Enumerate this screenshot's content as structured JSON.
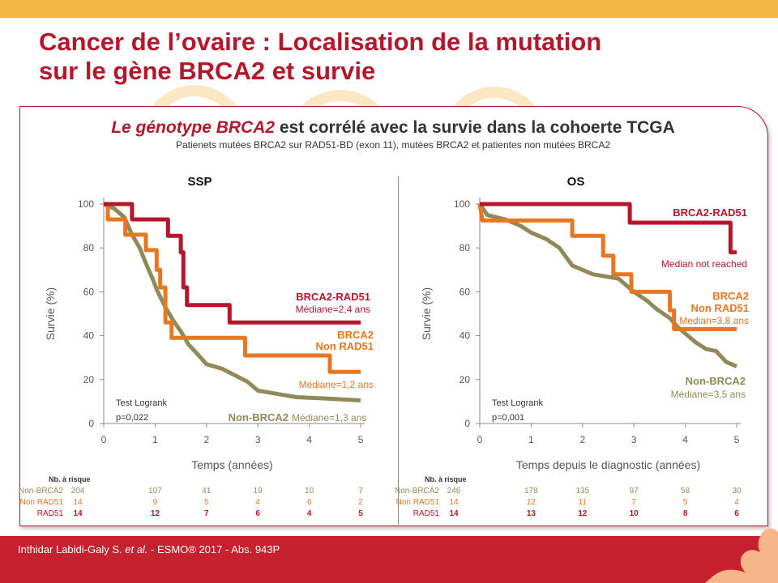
{
  "slide": {
    "title_line1": "Cancer de l’ovaire : Localisation de la mutation",
    "title_line2": "sur le gène BRCA2 et survie",
    "subtitle_italic": "Le génotype BRCA2",
    "subtitle_rest": " est corrélé avec la survie dans la cohoerte TCGA",
    "subsubtitle": "Patienets mutées BRCA2 sur RAD51-BD (exon 11), mutées BRCA2 et patientes non mutées BRCA2",
    "footer_author": "Inthidar Labidi-Galy S. ",
    "footer_etal": "et al.",
    "footer_rest": " - ESMO® 2017 - Abs. 943P"
  },
  "colors": {
    "rad51": "#b3172c",
    "non_rad51": "#e87722",
    "non_brca2": "#8f8a58",
    "title": "#b3172c",
    "footer": "#c7202f"
  },
  "chart_data": [
    {
      "type": "line",
      "title": "SSP",
      "xlabel": "Temps (années)",
      "ylabel": "Survie (%)",
      "xlim": [
        0,
        5
      ],
      "ylim": [
        0,
        100
      ],
      "xticks": [
        "0",
        "1",
        "2",
        "3",
        "4",
        "5"
      ],
      "yticks": [
        "0",
        "20",
        "40",
        "60",
        "80",
        "100"
      ],
      "test_label": "Test Logrank",
      "p_value": "p=0,022",
      "series": [
        {
          "name": "BRCA2-RAD51",
          "color": "#b3172c",
          "points": [
            [
              0,
              100
            ],
            [
              0.55,
              100
            ],
            [
              0.55,
              93
            ],
            [
              1.25,
              93
            ],
            [
              1.25,
              85.5
            ],
            [
              1.5,
              85.5
            ],
            [
              1.5,
              78
            ],
            [
              1.55,
              78
            ],
            [
              1.55,
              62
            ],
            [
              1.62,
              62
            ],
            [
              1.62,
              54
            ],
            [
              2.45,
              54
            ],
            [
              2.45,
              46
            ],
            [
              5,
              46
            ]
          ],
          "label_lines": [
            "BRCA2-RAD51",
            "Médiane=2,4 ans"
          ]
        },
        {
          "name": "Non RAD51",
          "color": "#e87722",
          "points": [
            [
              0,
              100
            ],
            [
              0.08,
              100
            ],
            [
              0.08,
              93
            ],
            [
              0.42,
              93
            ],
            [
              0.42,
              86
            ],
            [
              0.82,
              86
            ],
            [
              0.82,
              79
            ],
            [
              1.03,
              79
            ],
            [
              1.03,
              70
            ],
            [
              1.1,
              70
            ],
            [
              1.1,
              62
            ],
            [
              1.2,
              62
            ],
            [
              1.2,
              46
            ],
            [
              1.32,
              46
            ],
            [
              1.32,
              39
            ],
            [
              2.75,
              39
            ],
            [
              2.75,
              31
            ],
            [
              4.4,
              31
            ],
            [
              4.4,
              23.5
            ],
            [
              5,
              23.5
            ]
          ],
          "label_lines": [
            "BRCA2",
            "Non RAD51"
          ],
          "median_label": "Médiane=1,2 ans"
        },
        {
          "name": "Non-BRCA2",
          "color": "#8f8a58",
          "points": [
            [
              0,
              100
            ],
            [
              0.2,
              98
            ],
            [
              0.4,
              94
            ],
            [
              0.55,
              86
            ],
            [
              0.7,
              80
            ],
            [
              0.82,
              73
            ],
            [
              0.95,
              66
            ],
            [
              1.05,
              60
            ],
            [
              1.2,
              53
            ],
            [
              1.35,
              47
            ],
            [
              1.5,
              42
            ],
            [
              1.65,
              36
            ],
            [
              1.85,
              31
            ],
            [
              2.0,
              27
            ],
            [
              2.3,
              25
            ],
            [
              2.55,
              22
            ],
            [
              2.8,
              19
            ],
            [
              3.0,
              15
            ],
            [
              3.5,
              13
            ],
            [
              3.75,
              12
            ],
            [
              4.2,
              11.5
            ],
            [
              5,
              10.5
            ]
          ],
          "label_lines": [
            "Non-BRCA2",
            "Médiane=1,3 ans"
          ]
        }
      ],
      "at_risk": {
        "header": "Nb. à risque",
        "rows": [
          {
            "name": "Non-BRCA2",
            "values": [
              "204",
              "107",
              "41",
              "19",
              "10",
              "7"
            ]
          },
          {
            "name": "Non RAD51",
            "values": [
              "14",
              "9",
              "5",
              "4",
              "6",
              "2"
            ]
          },
          {
            "name": "RAD51",
            "values": [
              "14",
              "12",
              "7",
              "6",
              "4",
              "5"
            ]
          }
        ]
      }
    },
    {
      "type": "line",
      "title": "OS",
      "xlabel": "Temps depuis le diagnostic (années)",
      "ylabel": "Survie (%)",
      "xlim": [
        0,
        5
      ],
      "ylim": [
        0,
        100
      ],
      "xticks": [
        "0",
        "1",
        "2",
        "3",
        "4",
        "5"
      ],
      "yticks": [
        "0",
        "20",
        "40",
        "60",
        "80",
        "100"
      ],
      "test_label": "Test Logrank",
      "p_value": "p=0,001",
      "series": [
        {
          "name": "BRCA2-RAD51",
          "color": "#b3172c",
          "points": [
            [
              0,
              100
            ],
            [
              2.92,
              100
            ],
            [
              2.92,
              91.5
            ],
            [
              4.88,
              91.5
            ],
            [
              4.88,
              78
            ],
            [
              5,
              78
            ]
          ],
          "label_lines": [
            "BRCA2-RAD51",
            "Median not reached"
          ]
        },
        {
          "name": "Non RAD51",
          "color": "#e87722",
          "points": [
            [
              0,
              100
            ],
            [
              0.05,
              92.5
            ],
            [
              1.8,
              92.5
            ],
            [
              1.8,
              85.5
            ],
            [
              2.4,
              85.5
            ],
            [
              2.4,
              76.5
            ],
            [
              2.6,
              76.5
            ],
            [
              2.6,
              68
            ],
            [
              2.95,
              68
            ],
            [
              2.95,
              60
            ],
            [
              3.7,
              60
            ],
            [
              3.7,
              51.5
            ],
            [
              3.78,
              51.5
            ],
            [
              3.78,
              43
            ],
            [
              5,
              43
            ]
          ],
          "label_lines": [
            "BRCA2",
            "Non RAD51",
            "Median=3,8 ans"
          ]
        },
        {
          "name": "Non-BRCA2",
          "color": "#8f8a58",
          "points": [
            [
              0,
              100
            ],
            [
              0.15,
              95
            ],
            [
              0.5,
              93
            ],
            [
              0.8,
              90
            ],
            [
              1.0,
              87
            ],
            [
              1.3,
              84
            ],
            [
              1.55,
              80
            ],
            [
              1.8,
              72
            ],
            [
              2.2,
              68
            ],
            [
              2.7,
              66
            ],
            [
              3.0,
              60
            ],
            [
              3.25,
              56
            ],
            [
              3.45,
              52
            ],
            [
              3.7,
              48
            ],
            [
              3.85,
              44
            ],
            [
              4.0,
              41
            ],
            [
              4.2,
              37
            ],
            [
              4.4,
              34
            ],
            [
              4.6,
              33
            ],
            [
              4.8,
              28
            ],
            [
              5,
              26
            ]
          ],
          "label_lines": [
            "Non-BRCA2",
            "Médiane=3,5 ans"
          ]
        }
      ],
      "at_risk": {
        "header": "Nb. à risque",
        "rows": [
          {
            "name": "Non-BRCA2",
            "values": [
              "246",
              "178",
              "135",
              "97",
              "58",
              "30"
            ]
          },
          {
            "name": "Non RAD51",
            "values": [
              "14",
              "12",
              "11",
              "7",
              "5",
              "4"
            ]
          },
          {
            "name": "RAD51",
            "values": [
              "14",
              "13",
              "12",
              "10",
              "8",
              "6"
            ]
          }
        ]
      }
    }
  ]
}
